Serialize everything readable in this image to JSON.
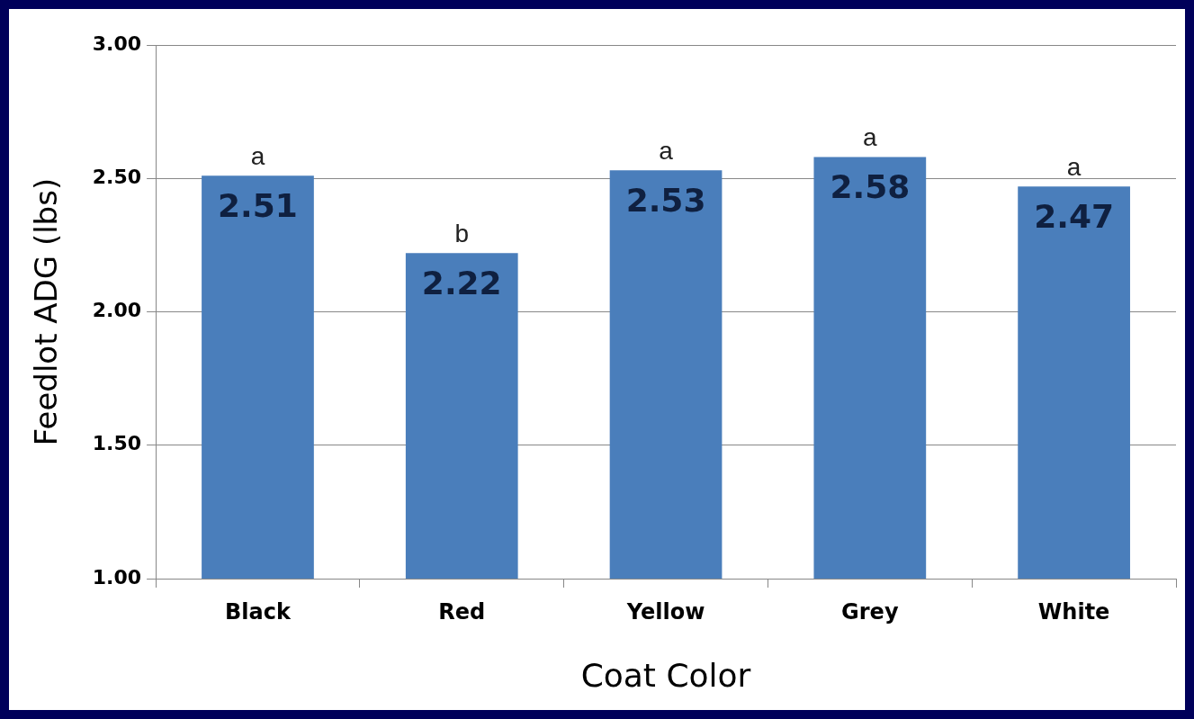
{
  "chart_data": {
    "type": "bar",
    "xlabel": "Coat Color",
    "ylabel": "Feedlot ADG (lbs)",
    "categories": [
      "Black",
      "Red",
      "Yellow",
      "Grey",
      "White"
    ],
    "values": [
      2.51,
      2.22,
      2.53,
      2.58,
      2.47
    ],
    "color": "#4a7ebb",
    "ylim": [
      1,
      3
    ],
    "yticks": [
      {
        "value": 1,
        "label": "1.00"
      },
      {
        "value": 1.5,
        "label": "1.50"
      },
      {
        "value": 2,
        "label": "2.00"
      },
      {
        "value": 2.5,
        "label": "2.50"
      },
      {
        "value": 3,
        "label": "3.00"
      }
    ],
    "grid": "y",
    "legend": false,
    "data_labels": true,
    "annotations": [
      {
        "text": "a",
        "x": "Black",
        "y": 2.51
      },
      {
        "text": "b",
        "x": "Red",
        "y": 2.22
      },
      {
        "text": "a",
        "x": "Yellow",
        "y": 2.53
      },
      {
        "text": "a",
        "x": "Grey",
        "y": 2.58
      },
      {
        "text": "a",
        "x": "White",
        "y": 2.47
      }
    ]
  }
}
